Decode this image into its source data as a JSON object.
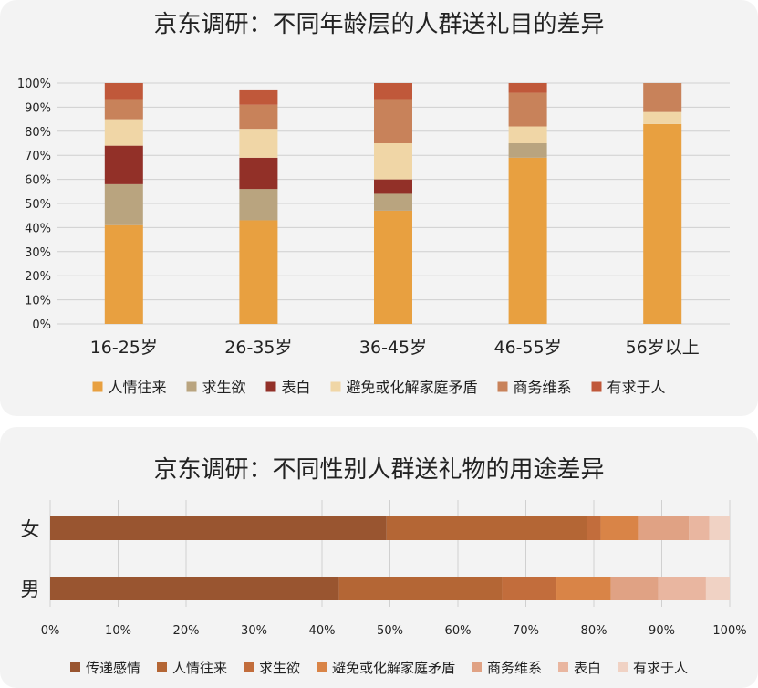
{
  "chart_data": [
    {
      "type": "bar",
      "stacked": true,
      "orientation": "vertical",
      "title": "京东调研：不同年龄层的人群送礼目的差异",
      "categories": [
        "16-25岁",
        "26-35岁",
        "36-45岁",
        "46-55岁",
        "56岁以上"
      ],
      "y_ticks": [
        "0%",
        "10%",
        "20%",
        "30%",
        "40%",
        "50%",
        "60%",
        "70%",
        "80%",
        "90%",
        "100%"
      ],
      "ylim": [
        0,
        100
      ],
      "grid": true,
      "legend_position": "bottom",
      "series": [
        {
          "name": "人情往来",
          "color": "#e8a040",
          "values": [
            41,
            43,
            47,
            69,
            83
          ]
        },
        {
          "name": "求生欲",
          "color": "#b9a47f",
          "values": [
            17,
            13,
            7,
            6,
            0
          ]
        },
        {
          "name": "表白",
          "color": "#923028",
          "values": [
            16,
            13,
            6,
            0,
            0
          ]
        },
        {
          "name": "避免或化解家庭矛盾",
          "color": "#f0d6a6",
          "values": [
            11,
            12,
            15,
            7,
            5
          ]
        },
        {
          "name": "商务维系",
          "color": "#c8825a",
          "values": [
            8,
            10,
            18,
            14,
            12
          ]
        },
        {
          "name": "有求于人",
          "color": "#c0583a",
          "values": [
            7,
            6,
            7,
            4,
            0
          ]
        }
      ]
    },
    {
      "type": "bar",
      "stacked": true,
      "orientation": "horizontal",
      "title": "京东调研：不同性别人群送礼物的用途差异",
      "categories": [
        "女",
        "男"
      ],
      "x_ticks": [
        "0%",
        "10%",
        "20%",
        "30%",
        "40%",
        "50%",
        "60%",
        "70%",
        "80%",
        "90%",
        "100%"
      ],
      "xlim": [
        0,
        100
      ],
      "grid": true,
      "legend_position": "bottom",
      "series": [
        {
          "name": "传递感情",
          "color": "#995530",
          "values": [
            49.5,
            42.5
          ]
        },
        {
          "name": "人情往来",
          "color": "#b46635",
          "values": [
            29.5,
            24
          ]
        },
        {
          "name": "求生欲",
          "color": "#c26d3c",
          "values": [
            2,
            8
          ]
        },
        {
          "name": "避免或化解家庭矛盾",
          "color": "#d98447",
          "values": [
            5.5,
            8
          ]
        },
        {
          "name": "商务维系",
          "color": "#e0a284",
          "values": [
            7.5,
            7
          ]
        },
        {
          "name": "表白",
          "color": "#e9b6a0",
          "values": [
            3,
            7
          ]
        },
        {
          "name": "有求于人",
          "color": "#f0d2c4",
          "values": [
            3,
            3.5
          ]
        }
      ]
    }
  ]
}
